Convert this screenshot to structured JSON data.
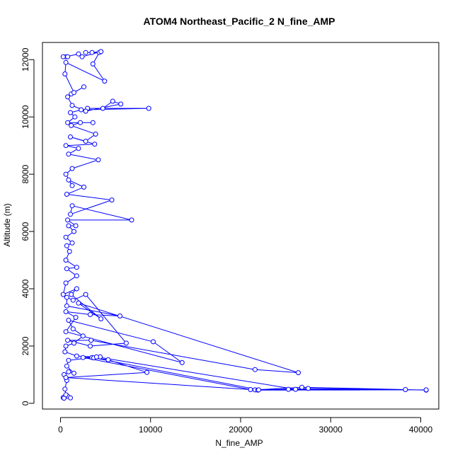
{
  "chart_data": {
    "type": "line",
    "title": "ATOM4 Northeast_Pacific_2 N_fine_AMP",
    "xlabel": "N_fine_AMP",
    "ylabel": "Altitude (m)",
    "xlim": [
      -2000,
      42000
    ],
    "ylim": [
      -200,
      12600
    ],
    "x_ticks": [
      0,
      10000,
      20000,
      30000,
      40000
    ],
    "y_ticks": [
      0,
      2000,
      4000,
      6000,
      8000,
      10000,
      12000
    ],
    "grid": false,
    "color": "#0000ff",
    "series": [
      {
        "points": [
          [
            300,
            200
          ],
          [
            800,
            250
          ],
          [
            1100,
            190
          ],
          [
            400,
            180
          ],
          [
            600,
            300
          ],
          [
            500,
            500
          ],
          [
            700,
            800
          ],
          [
            400,
            1000
          ],
          [
            900,
            1100
          ],
          [
            1500,
            1050
          ],
          [
            700,
            1300
          ],
          [
            900,
            1500
          ],
          [
            3500,
            1600
          ],
          [
            5300,
            1520
          ],
          [
            9600,
            1080
          ],
          [
            600,
            900
          ],
          [
            21600,
            470
          ],
          [
            26800,
            560
          ],
          [
            38300,
            480
          ],
          [
            40600,
            460
          ],
          [
            27500,
            520
          ],
          [
            21900,
            460
          ],
          [
            40600,
            470
          ],
          [
            25300,
            490
          ],
          [
            21100,
            480
          ],
          [
            2500,
            1600
          ],
          [
            4400,
            1620
          ],
          [
            3700,
            1590
          ],
          [
            22000,
            470
          ],
          [
            26100,
            490
          ],
          [
            4000,
            1620
          ],
          [
            1800,
            1650
          ],
          [
            500,
            1800
          ],
          [
            600,
            2000
          ],
          [
            1500,
            2100
          ],
          [
            2500,
            2350
          ],
          [
            1400,
            2600
          ],
          [
            900,
            2900
          ],
          [
            10300,
            2150
          ],
          [
            13500,
            1420
          ],
          [
            600,
            2500
          ],
          [
            1700,
            3000
          ],
          [
            600,
            3200
          ],
          [
            3300,
            3100
          ],
          [
            6600,
            3050
          ],
          [
            700,
            3400
          ],
          [
            700,
            3700
          ],
          [
            1400,
            3600
          ],
          [
            2800,
            3800
          ],
          [
            7300,
            2100
          ],
          [
            3300,
            2000
          ],
          [
            800,
            2200
          ],
          [
            3400,
            2200
          ],
          [
            21600,
            1180
          ],
          [
            26400,
            1070
          ],
          [
            2000,
            3500
          ],
          [
            4500,
            2950
          ],
          [
            1200,
            3800
          ],
          [
            1800,
            4000
          ],
          [
            300,
            3800
          ],
          [
            600,
            4200
          ],
          [
            1800,
            4450
          ],
          [
            700,
            4700
          ],
          [
            1800,
            4750
          ],
          [
            600,
            5000
          ],
          [
            1000,
            5300
          ],
          [
            700,
            5500
          ],
          [
            1300,
            5600
          ],
          [
            600,
            5800
          ],
          [
            1500,
            6000
          ],
          [
            900,
            6200
          ],
          [
            1700,
            6200
          ],
          [
            800,
            6400
          ],
          [
            7900,
            6400
          ],
          [
            1300,
            6900
          ],
          [
            1100,
            6600
          ],
          [
            5700,
            7100
          ],
          [
            700,
            7300
          ],
          [
            2600,
            7550
          ],
          [
            900,
            7800
          ],
          [
            1300,
            7600
          ],
          [
            600,
            8000
          ],
          [
            1300,
            8200
          ],
          [
            4200,
            8500
          ],
          [
            900,
            8700
          ],
          [
            2000,
            8900
          ],
          [
            600,
            9000
          ],
          [
            3800,
            9050
          ],
          [
            1100,
            9300
          ],
          [
            2800,
            9150
          ],
          [
            3900,
            9400
          ],
          [
            1200,
            9700
          ],
          [
            2200,
            9800
          ],
          [
            3600,
            9800
          ],
          [
            800,
            9800
          ],
          [
            1600,
            10000
          ],
          [
            1100,
            10150
          ],
          [
            2300,
            10250
          ],
          [
            9800,
            10300
          ],
          [
            3000,
            10300
          ],
          [
            4700,
            10300
          ],
          [
            5800,
            10550
          ],
          [
            6700,
            10450
          ],
          [
            2800,
            10200
          ],
          [
            1300,
            10400
          ],
          [
            800,
            10700
          ],
          [
            1200,
            10800
          ],
          [
            2600,
            11050
          ],
          [
            1500,
            10850
          ],
          [
            500,
            11500
          ],
          [
            600,
            11900
          ],
          [
            4900,
            11250
          ],
          [
            3600,
            11850
          ],
          [
            4300,
            12250
          ],
          [
            2800,
            12250
          ],
          [
            3500,
            12250
          ],
          [
            4500,
            12280
          ],
          [
            2400,
            12100
          ],
          [
            2000,
            12200
          ],
          [
            600,
            12100
          ],
          [
            300,
            12100
          ],
          [
            800,
            12100
          ]
        ]
      }
    ]
  }
}
